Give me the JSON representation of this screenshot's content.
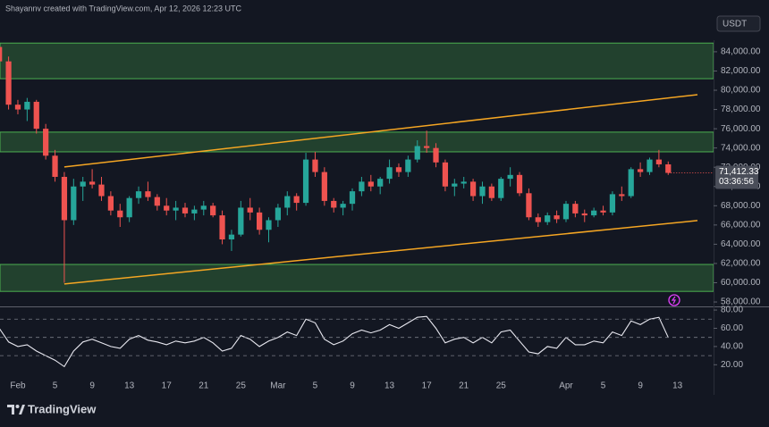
{
  "header": "Shayannv created with TradingView.com, Apr 12, 2026 12:23 UTC",
  "logo": "TradingView",
  "chart_data": {
    "type": "candlestick",
    "quote": "USDT",
    "categories": [
      null,
      null,
      "Feb",
      null,
      null,
      null,
      "5",
      null,
      null,
      null,
      "9",
      null,
      null,
      null,
      "13",
      null,
      null,
      null,
      "17",
      null,
      null,
      null,
      "21",
      null,
      null,
      null,
      "25",
      null,
      null,
      null,
      "Mar",
      null,
      null,
      null,
      "5",
      null,
      null,
      null,
      "9",
      null,
      null,
      null,
      "13",
      null,
      null,
      null,
      "17",
      null,
      null,
      null,
      "21",
      null,
      null,
      null,
      "25",
      null,
      null,
      null,
      null,
      null,
      null,
      "Apr",
      null,
      null,
      null,
      "5",
      null,
      null,
      null,
      "9",
      null,
      null,
      null,
      "13",
      null,
      null,
      null
    ],
    "open": [
      84500,
      83000,
      78500,
      78000,
      78800,
      76000,
      73200,
      71000,
      66500,
      70000,
      70500,
      70200,
      69000,
      67500,
      66800,
      68800,
      69500,
      68900,
      68000,
      67500,
      67800,
      67200,
      67600,
      68000,
      67000,
      64500,
      65000,
      67800,
      67300,
      65500,
      66500,
      67800,
      69000,
      68300,
      72800,
      71500,
      68500,
      67800,
      68200,
      69500,
      70500,
      70000,
      70800,
      72000,
      71500,
      72800,
      74200,
      74000,
      72500,
      70000,
      70300,
      70500,
      69000,
      70000,
      68800,
      70800,
      71200,
      69300,
      66800,
      66300,
      67000,
      66600,
      68200,
      67200,
      67000,
      67500,
      67300,
      69200,
      69000,
      71800,
      71500,
      72800,
      72300,
      null,
      null,
      null,
      null
    ],
    "high": [
      85000,
      83500,
      79000,
      79200,
      79000,
      76500,
      73800,
      71500,
      70800,
      71000,
      71800,
      71000,
      69500,
      68200,
      69000,
      70000,
      70500,
      69200,
      68800,
      68500,
      68300,
      68000,
      68500,
      68300,
      67500,
      65500,
      68500,
      68800,
      67800,
      66800,
      68200,
      69500,
      69300,
      73500,
      73600,
      72000,
      68800,
      68500,
      69800,
      71000,
      71200,
      71000,
      72800,
      72400,
      73200,
      74800,
      75800,
      74500,
      72800,
      70800,
      71000,
      70800,
      70500,
      70300,
      71000,
      72000,
      71500,
      69800,
      67200,
      67300,
      67500,
      68500,
      68500,
      67600,
      67800,
      68000,
      69500,
      70000,
      72000,
      72500,
      73000,
      73800,
      72600,
      null,
      null,
      null,
      null
    ],
    "low": [
      82000,
      78000,
      77500,
      76800,
      75500,
      72800,
      70500,
      60000,
      66000,
      68500,
      69800,
      68500,
      67000,
      65800,
      66300,
      68200,
      68500,
      67500,
      67000,
      66500,
      66800,
      66500,
      67000,
      66800,
      64000,
      63300,
      64800,
      66500,
      65000,
      64200,
      65800,
      67000,
      67500,
      68000,
      71000,
      68000,
      67300,
      67000,
      67500,
      69000,
      69500,
      69200,
      70300,
      71000,
      71000,
      72500,
      73500,
      72000,
      69500,
      69000,
      69800,
      68500,
      68200,
      68500,
      68500,
      70000,
      69000,
      66500,
      65800,
      66000,
      66200,
      66300,
      66800,
      66300,
      66800,
      67000,
      67000,
      68500,
      68800,
      71000,
      71200,
      72000,
      71200,
      null,
      null,
      null,
      null
    ],
    "close": [
      83000,
      78500,
      78000,
      78800,
      76000,
      73200,
      71000,
      66500,
      70000,
      70500,
      70200,
      69000,
      67500,
      66800,
      68800,
      69500,
      68900,
      68000,
      67500,
      67800,
      67200,
      67600,
      68000,
      67000,
      64500,
      65000,
      67800,
      67300,
      65500,
      66500,
      67800,
      69000,
      68300,
      72800,
      71500,
      68500,
      67800,
      68200,
      69500,
      70500,
      70000,
      70800,
      72000,
      71500,
      72800,
      74200,
      74000,
      72500,
      70000,
      70300,
      70500,
      69000,
      70000,
      68800,
      70800,
      71200,
      69300,
      66800,
      66300,
      67000,
      66600,
      68200,
      67200,
      67000,
      67500,
      67300,
      69200,
      69000,
      71800,
      71500,
      72800,
      72300,
      71412.33,
      null,
      null,
      null,
      null
    ],
    "last_label": "71,412.33",
    "countdown": "03:36:56",
    "up_color": "#26a69a",
    "down_color": "#ef5350",
    "ylim": [
      57540,
      85200
    ],
    "yticks": [
      {
        "value": 84000,
        "label": "84,000.00"
      },
      {
        "value": 82000,
        "label": "82,000.00"
      },
      {
        "value": 80000,
        "label": "80,000.00"
      },
      {
        "value": 78000,
        "label": "78,000.00"
      },
      {
        "value": 76000,
        "label": "76,000.00"
      },
      {
        "value": 74000,
        "label": "74,000.00"
      },
      {
        "value": 72000,
        "label": "72,000.00"
      },
      {
        "value": 70000,
        "label": "70,000.00"
      },
      {
        "value": 68000,
        "label": "68,000.00"
      },
      {
        "value": 66000,
        "label": "66,000.00"
      },
      {
        "value": 64000,
        "label": "64,000.00"
      },
      {
        "value": 62000,
        "label": "62,000.00"
      },
      {
        "value": 60000,
        "label": "60,000.00"
      },
      {
        "value": 58000,
        "label": "58,000.00"
      }
    ],
    "zones": [
      {
        "low": 81200,
        "high": 84900
      },
      {
        "low": 73600,
        "high": 75650
      },
      {
        "low": 59100,
        "high": 61900
      }
    ],
    "zone_color": "#4caf50",
    "trendlines": [
      {
        "start": 72030,
        "end": 79540
      },
      {
        "start": 59870,
        "end": 66460
      }
    ],
    "trendline_color": "#f5a623",
    "rsi": {
      "values": [
        60,
        45,
        40,
        42,
        35,
        30,
        25,
        18,
        35,
        45,
        48,
        44,
        40,
        38,
        48,
        52,
        47,
        45,
        42,
        46,
        44,
        46,
        50,
        44,
        35,
        38,
        52,
        48,
        40,
        46,
        50,
        56,
        52,
        70,
        66,
        48,
        42,
        46,
        54,
        58,
        55,
        58,
        64,
        60,
        66,
        72,
        73,
        60,
        44,
        48,
        50,
        44,
        50,
        44,
        56,
        58,
        46,
        34,
        32,
        40,
        38,
        50,
        42,
        42,
        46,
        44,
        56,
        52,
        68,
        64,
        70,
        72,
        50,
        null,
        null,
        null,
        null
      ],
      "color": "#e8e8f0",
      "ylim": [
        -13,
        83
      ],
      "yticks": [
        {
          "value": 80,
          "label": "80.00"
        },
        {
          "value": 60,
          "label": "60.00"
        },
        {
          "value": 40,
          "label": "40.00"
        },
        {
          "value": 20,
          "label": "20.00"
        }
      ],
      "levels": [
        70,
        50,
        30
      ]
    }
  }
}
